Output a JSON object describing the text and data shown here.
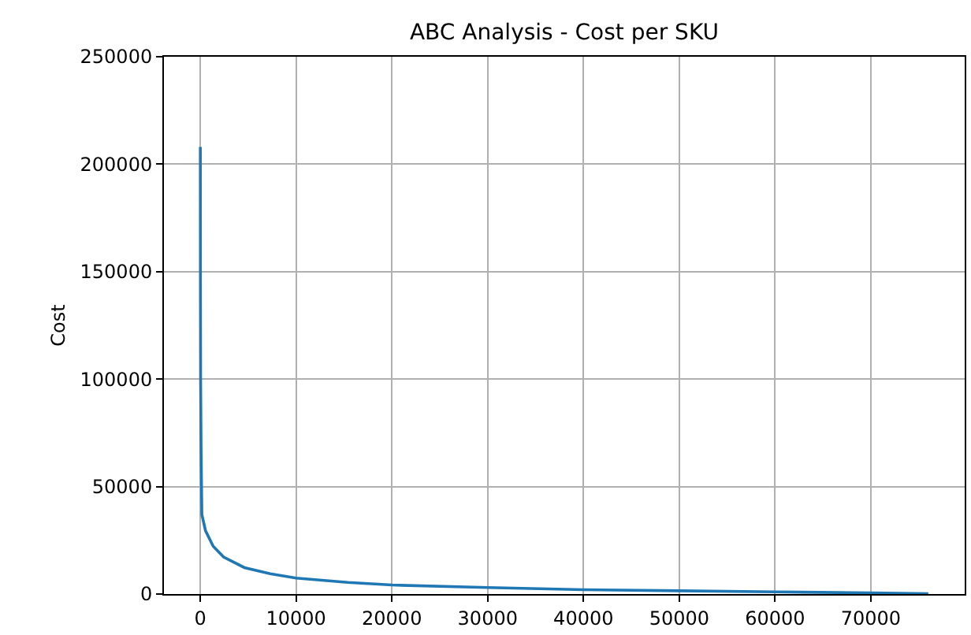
{
  "chart_data": {
    "type": "line",
    "title": "ABC Analysis - Cost per SKU",
    "ylabel": "Cost",
    "x": [
      0,
      10,
      30,
      80,
      160,
      540,
      1350,
      2430,
      4600,
      7300,
      10000,
      15400,
      20000,
      30000,
      40000,
      50000,
      60000,
      70000,
      76000
    ],
    "series": [
      {
        "color": "#1f77b4",
        "values": [
          208000,
          150000,
          100000,
          65000,
          37000,
          29500,
          22200,
          17200,
          12300,
          9400,
          7400,
          5400,
          4200,
          3000,
          2000,
          1500,
          1000,
          500,
          200
        ]
      }
    ],
    "xlim": [
      -3800,
      79800
    ],
    "xticks": [
      0,
      10000,
      20000,
      30000,
      40000,
      50000,
      60000,
      70000
    ],
    "ylim": [
      0,
      250000
    ],
    "yticks": [
      0,
      50000,
      100000,
      150000,
      200000,
      250000
    ],
    "grid": true,
    "marker": "none",
    "line_style": "solid"
  }
}
